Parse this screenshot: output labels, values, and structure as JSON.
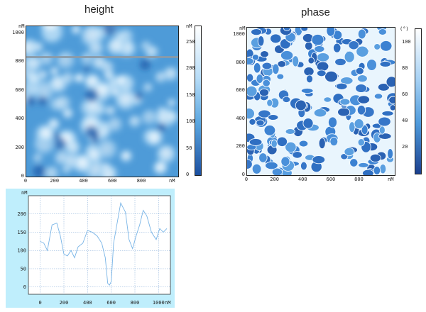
{
  "height_panel": {
    "title": "height",
    "unit_x": "nM",
    "unit_y": "nM",
    "y_ticks": [
      "1000",
      "800",
      "600",
      "400",
      "200",
      "0"
    ],
    "x_ticks": [
      "0",
      "200",
      "400",
      "600",
      "800"
    ],
    "colorbar_unit": "nM",
    "colorbar_ticks": [
      "250",
      "200",
      "150",
      "100",
      "50",
      "0"
    ]
  },
  "phase_panel": {
    "title": "phase",
    "unit_x": "nM",
    "unit_y": "nM",
    "y_ticks": [
      "1000",
      "800",
      "600",
      "400",
      "200",
      "0"
    ],
    "x_ticks": [
      "0",
      "200",
      "400",
      "600",
      "800"
    ],
    "colorbar_unit": "(°)",
    "colorbar_ticks": [
      "100",
      "80",
      "60",
      "40",
      "20"
    ]
  },
  "chart_data": {
    "type": "line",
    "xlabel": "nM",
    "ylabel": "nM",
    "x_ticks": [
      "0",
      "200",
      "400",
      "600",
      "800",
      "1000"
    ],
    "y_ticks": [
      "200",
      "150",
      "100",
      "50",
      "0"
    ],
    "xlim": [
      -100,
      1100
    ],
    "ylim": [
      -20,
      250
    ],
    "grid": true,
    "series": [
      {
        "x": [
          0,
          30,
          60,
          100,
          140,
          170,
          200,
          230,
          260,
          290,
          320,
          360,
          400,
          440,
          480,
          520,
          550,
          570,
          585,
          600,
          620,
          650,
          680,
          720,
          750,
          780,
          810,
          840,
          870,
          900,
          940,
          980,
          1010,
          1040,
          1070
        ],
        "y": [
          125,
          120,
          100,
          170,
          175,
          140,
          90,
          85,
          100,
          80,
          110,
          120,
          155,
          150,
          140,
          120,
          80,
          10,
          5,
          15,
          120,
          175,
          230,
          205,
          130,
          105,
          140,
          170,
          210,
          195,
          150,
          130,
          160,
          150,
          160
        ]
      }
    ],
    "line_color": "#78b4e6"
  }
}
